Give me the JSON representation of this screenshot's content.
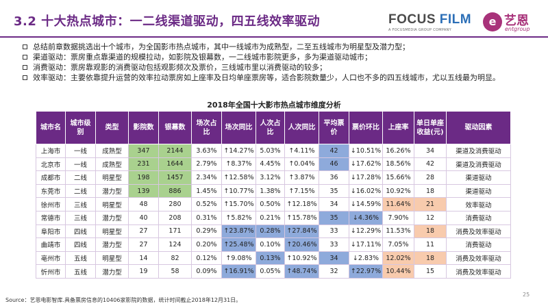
{
  "header": {
    "title": "3.2 十大热点城市：一二线渠道驱动，四五线效率驱动",
    "logo_focus_a": "FOCUS",
    "logo_focus_b": "FILM",
    "logo_focus_sub": "A FOCUSMEDIA GROUP COMPANY",
    "logo_yien_mark": "e",
    "logo_yien_name": "艺恩",
    "logo_yien_en": "entgroup"
  },
  "bullets": [
    "总结前章数据挑选出十个城市，为全国影市热点城市，其中一线城市为成熟型，二至五线城市为明星型及潜力型；",
    "渠道驱动：票房重点靠渠道的规模拉动，如影院及银幕数，一二线城市影院更多，多为渠道驱动城市；",
    "消费驱动：票房靠观影的消费驱动包括观影频次及票价，三线城市里以消费驱动的较多；",
    "效率驱动：主要依靠提升运营的效率拉动票房如上座率及日均单座票房等，适合影院数量少，人口也不多的四五线城市，尤以五线最为明显。"
  ],
  "table": {
    "title": "2018年全国十大影市热点城市维度分析",
    "headers": [
      "城市名",
      "城市级别",
      "类型",
      "影院数",
      "银幕数",
      "场次占比",
      "场次同比",
      "人次占比",
      "人次同比",
      "平均票价",
      "票价环比",
      "上座率",
      "单日单座收益(元)",
      "驱动因素"
    ],
    "rows": [
      [
        "上海市",
        "一线",
        "成熟型",
        "347",
        "2144",
        "3.63%",
        "↑14.27%",
        "5.03%",
        "↑4.11%",
        "42",
        "↓10.51%",
        "16.26%",
        "34",
        "渠道及消费驱动"
      ],
      [
        "北京市",
        "一线",
        "成熟型",
        "231",
        "1644",
        "2.79%",
        "↑8.37%",
        "4.45%",
        "↑0.04%",
        "46",
        "↓17.62%",
        "18.56%",
        "42",
        "渠道及消费驱动"
      ],
      [
        "成都市",
        "二线",
        "明星型",
        "198",
        "1457",
        "2.34%",
        "↑12.58%",
        "3.12%",
        "↑3.87%",
        "36",
        "↓17.28%",
        "15.66%",
        "28",
        "渠道驱动"
      ],
      [
        "东莞市",
        "二线",
        "潜力型",
        "139",
        "886",
        "1.45%",
        "↑10.77%",
        "1.38%",
        "↑7.15%",
        "35",
        "↓16.02%",
        "10.92%",
        "18",
        "渠道驱动"
      ],
      [
        "徐州市",
        "三线",
        "明星型",
        "48",
        "280",
        "0.52%",
        "↑15.70%",
        "0.50%",
        "↑12.18%",
        "34",
        "↓14.59%",
        "11.64%",
        "21",
        "效率驱动"
      ],
      [
        "常德市",
        "三线",
        "潜力型",
        "40",
        "208",
        "0.31%",
        "↑5.82%",
        "0.21%",
        "↑15.78%",
        "35",
        "↓4.36%",
        "7.90%",
        "12",
        "消费驱动"
      ],
      [
        "阜阳市",
        "四线",
        "明星型",
        "27",
        "171",
        "0.29%",
        "↑23.87%",
        "0.28%",
        "↑27.84%",
        "33",
        "↓12.29%",
        "11.53%",
        "18",
        "消费及效率驱动"
      ],
      [
        "曲靖市",
        "四线",
        "潜力型",
        "27",
        "124",
        "0.20%",
        "↑25.48%",
        "0.10%",
        "↑20.46%",
        "33",
        "↓17.11%",
        "7.05%",
        "11",
        "消费驱动"
      ],
      [
        "亳州市",
        "五线",
        "明星型",
        "14",
        "82",
        "0.12%",
        "↑9.08%",
        "0.13%",
        "↑10.92%",
        "34",
        "↓2.83%",
        "12.02%",
        "18",
        "消费及效率驱动"
      ],
      [
        "忻州市",
        "五线",
        "潜力型",
        "19",
        "58",
        "0.09%",
        "↑16.91%",
        "0.05%",
        "↑48.74%",
        "32",
        "↑22.97%",
        "10.44%",
        "15",
        "消费及效率驱动"
      ]
    ],
    "highlights": [
      [
        "",
        "",
        "",
        "green",
        "green",
        "",
        "",
        "",
        "",
        "blue",
        "",
        "",
        "",
        ""
      ],
      [
        "",
        "",
        "",
        "green",
        "green",
        "",
        "",
        "",
        "",
        "blue",
        "",
        "",
        "",
        ""
      ],
      [
        "",
        "",
        "",
        "green",
        "green",
        "",
        "",
        "",
        "",
        "",
        "",
        "",
        "",
        ""
      ],
      [
        "",
        "",
        "",
        "green",
        "green",
        "",
        "",
        "",
        "",
        "",
        "",
        "",
        "",
        ""
      ],
      [
        "",
        "",
        "",
        "",
        "",
        "",
        "",
        "",
        "",
        "",
        "",
        "orange",
        "orange",
        ""
      ],
      [
        "",
        "",
        "",
        "",
        "",
        "",
        "",
        "",
        "",
        "blue",
        "blue",
        "",
        "",
        ""
      ],
      [
        "",
        "",
        "",
        "",
        "",
        "",
        "blue",
        "blue",
        "blue",
        "",
        "",
        "",
        "orange",
        ""
      ],
      [
        "",
        "",
        "",
        "",
        "",
        "",
        "blue",
        "",
        "blue",
        "",
        "",
        "",
        "",
        ""
      ],
      [
        "",
        "",
        "",
        "",
        "",
        "",
        "",
        "blue",
        "",
        "blue",
        "",
        "orange",
        "orange",
        ""
      ],
      [
        "",
        "",
        "",
        "",
        "",
        "",
        "blue",
        "",
        "blue",
        "",
        "blue",
        "orange",
        "",
        ""
      ]
    ]
  },
  "footer": {
    "source": "Source：艺恩电影智库.具备票房信息的10406家影院的数据，统计时间截止2018年12月31日。",
    "page": "25"
  }
}
